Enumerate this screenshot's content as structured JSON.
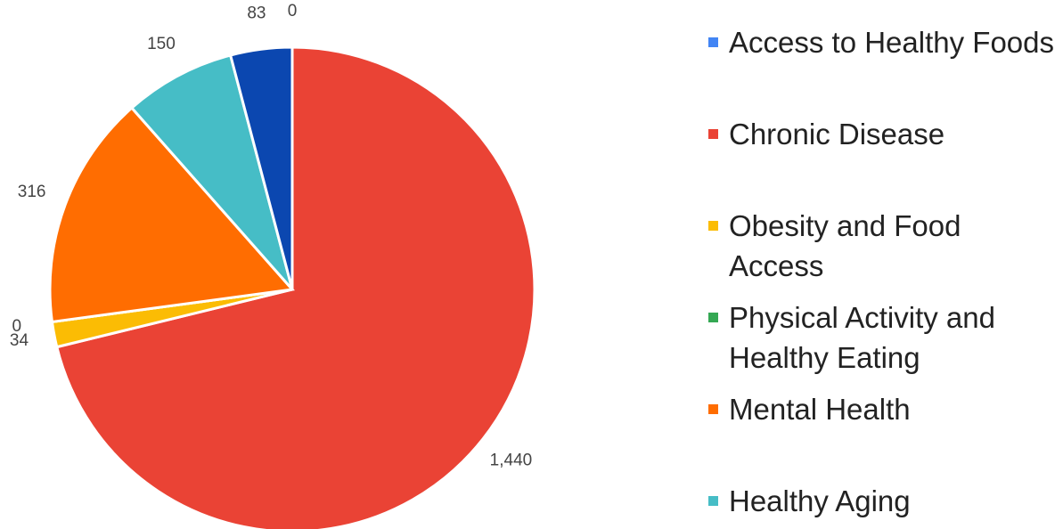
{
  "chart_data": {
    "type": "pie",
    "categories": [
      "Access to Healthy Foods",
      "Chronic Disease",
      "Obesity and Food Access",
      "Physical Activity and Healthy Eating",
      "Mental Health",
      "Healthy Aging",
      null
    ],
    "values": [
      0,
      1440,
      34,
      0,
      316,
      150,
      83
    ],
    "value_labels": [
      "0",
      "1,440",
      "34",
      "0",
      "316",
      "150",
      "83"
    ],
    "colors": [
      "#4285f4",
      "#ea4335",
      "#fbbc04",
      "#34a853",
      "#ff6d01",
      "#46bdc6",
      "#0b47b0"
    ],
    "legend": "right"
  }
}
